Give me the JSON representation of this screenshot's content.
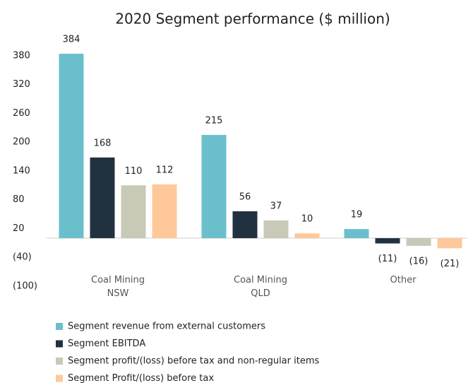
{
  "chart_data": {
    "type": "bar",
    "title": "2020 Segment performance ($ million)",
    "categories": [
      "Coal Mining\nNSW",
      "Coal Mining\nQLD",
      "Other"
    ],
    "series": [
      {
        "name": "Segment revenue from external customers",
        "color": "#6bbfcc",
        "values": [
          384,
          215,
          19
        ],
        "value_labels": [
          "384",
          "215",
          "19"
        ]
      },
      {
        "name": "Segment EBITDA",
        "color": "#22313f",
        "values": [
          168,
          56,
          -11
        ],
        "value_labels": [
          "168",
          "56",
          "(11)"
        ]
      },
      {
        "name": "Segment profit/(loss) before tax and non-regular items",
        "color": "#c9c9b8",
        "values": [
          110,
          37,
          -16
        ],
        "value_labels": [
          "110",
          "37",
          "(16)"
        ]
      },
      {
        "name": "Segment Profit/(loss) before tax",
        "color": "#fec89a",
        "values": [
          112,
          10,
          -21
        ],
        "value_labels": [
          "112",
          "10",
          "(21)"
        ]
      }
    ],
    "ylim": [
      -100,
      390
    ],
    "yticks": [
      380,
      320,
      260,
      200,
      140,
      80,
      20,
      {
        "value": -40,
        "label": "(40)"
      },
      {
        "value": -100,
        "label": "(100)"
      }
    ],
    "grid": false
  }
}
